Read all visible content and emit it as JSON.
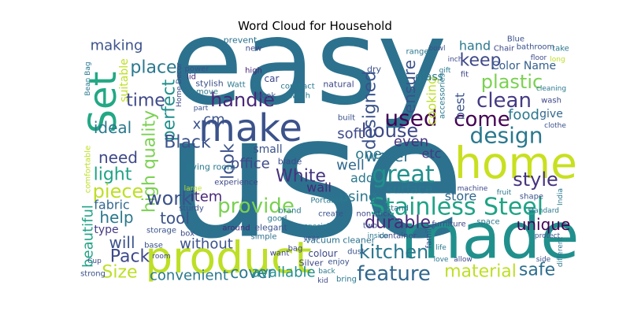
{
  "chart_data": {
    "type": "wordcloud",
    "title": "Word Cloud for Household",
    "words": [
      "easy",
      "use",
      "home",
      "made",
      "product",
      "make",
      "Set",
      "Stainless Steel",
      "design",
      "come",
      "clean",
      "plastic",
      "keep",
      "Color Name",
      "hand",
      "food",
      "give",
      "style",
      "unique",
      "safe",
      "material",
      "durable",
      "feature",
      "kitchen",
      "store",
      "surface",
      "great",
      "water",
      "house",
      "ensure",
      "designed",
      "used",
      "soft",
      "one",
      "even",
      "etc",
      "well",
      "add",
      "using",
      "wall",
      "White",
      "cooking",
      "glass",
      "best",
      "making",
      "place",
      "suitable",
      "time",
      "perfect",
      "ideal",
      "high quality",
      "Black",
      "cm",
      "x",
      "handle",
      "office",
      "look",
      "small",
      "need",
      "light",
      "piece",
      "fabric",
      "help",
      "type",
      "will",
      "beautiful",
      "Pack",
      "Size",
      "work",
      "tool",
      "item",
      "provide",
      "without",
      "cover",
      "convenient",
      "available",
      "colour",
      "prevent",
      "new",
      "stylish",
      "Watt",
      "lid",
      "remove",
      "power",
      "car",
      "high",
      "compact",
      "switch",
      "natural",
      "dry",
      "hook",
      "blade",
      "around",
      "brand",
      "good",
      "elegant",
      "simple",
      "box",
      "sturdy",
      "comfortable",
      "storage",
      "living room",
      "Bean Bag",
      "Home Decor",
      "part",
      "bottle",
      "accessories",
      "container",
      "built",
      "create",
      "special",
      "stand",
      "furniture",
      "space",
      "machine",
      "fruit",
      "shape",
      "standard",
      "India",
      "clothe",
      "wash",
      "cleaning",
      "bathroom",
      "take",
      "long",
      "floor",
      "gift",
      "inch",
      "bowl",
      "range",
      "Chair",
      "Blue",
      "fit",
      "large",
      "experience",
      "Portable",
      "non stick",
      "two",
      "inside",
      "vacuum cleaner",
      "bag",
      "year",
      "back",
      "enjoy",
      "family",
      "love",
      "Silver",
      "dust",
      "want",
      "bring",
      "kid",
      "strong",
      "Cup",
      "base",
      "room",
      "life",
      "allow",
      "different",
      "side",
      "protect"
    ],
    "weights": [
      150,
      215,
      55,
      80,
      55,
      48,
      48,
      30,
      28,
      26,
      26,
      24,
      22,
      14,
      16,
      18,
      14,
      24,
      20,
      22,
      22,
      22,
      26,
      24,
      16,
      16,
      30,
      20,
      24,
      20,
      22,
      28,
      18,
      18,
      18,
      16,
      18,
      16,
      18,
      16,
      22,
      16,
      14,
      16,
      18,
      22,
      14,
      22,
      22,
      20,
      22,
      22,
      18,
      18,
      24,
      18,
      22,
      14,
      20,
      22,
      24,
      16,
      20,
      14,
      20,
      18,
      22,
      22,
      24,
      20,
      18,
      26,
      18,
      20,
      18,
      18,
      12,
      11,
      10,
      11,
      10,
      10,
      10,
      10,
      12,
      10,
      10,
      10,
      11,
      11,
      10,
      11,
      10,
      10,
      10,
      11,
      10,
      10,
      10,
      10,
      10,
      11,
      9,
      9,
      9,
      9,
      10,
      10,
      10,
      10,
      9,
      10,
      10,
      10,
      9,
      9,
      10,
      9,
      9,
      9,
      10,
      9,
      10,
      10,
      9,
      9,
      9,
      9,
      9,
      10,
      10,
      10,
      10,
      9,
      10,
      10,
      10,
      10,
      9,
      11,
      10,
      9,
      9,
      10,
      10,
      9,
      11,
      10,
      10,
      10,
      9,
      10,
      9,
      10,
      9,
      9,
      9,
      9,
      9,
      9
    ],
    "colors": [
      "#2c728e",
      "#2c728e",
      "#c8e020",
      "#21908d",
      "#bddf26",
      "#3b528b",
      "#22a884",
      "#20a386",
      "#2a788e",
      "#440154",
      "#443a83",
      "#7ad151",
      "#3e4989",
      "#355f8d",
      "#2a788e",
      "#2a788e",
      "#31688e",
      "#46337e",
      "#440154",
      "#2e6e8e",
      "#bddf26",
      "#482878",
      "#31688e",
      "#2a788e",
      "#31688e",
      "#2a788e",
      "#21908d",
      "#2c728e",
      "#3e4989",
      "#3b528b",
      "#3b528b",
      "#440154",
      "#3e4989",
      "#2a788e",
      "#46337e",
      "#443a83",
      "#31688e",
      "#2a788e",
      "#2a788e",
      "#482878",
      "#46337e",
      "#bddf26",
      "#2a788e",
      "#3b528b",
      "#3b528b",
      "#2a788e",
      "#bddf26",
      "#3e4989",
      "#21908d",
      "#2a788e",
      "#7ad151",
      "#3b528b",
      "#3b528b",
      "#3b528b",
      "#482878",
      "#3e4989",
      "#3b528b",
      "#3b528b",
      "#3e4989",
      "#20a386",
      "#bddf26",
      "#31688e",
      "#2a788e",
      "#443a83",
      "#3b528b",
      "#20a386",
      "#3e4989",
      "#bddf26",
      "#3b528b",
      "#3b528b",
      "#482878",
      "#7ad151",
      "#3b528b",
      "#2a788e",
      "#2a788e",
      "#21908d",
      "#3e4989",
      "#2c728e",
      "#3e4989",
      "#3b528b",
      "#2a788e",
      "#482878",
      "#2a788e",
      "#3b528b",
      "#3e4989",
      "#482878",
      "#2a788e",
      "#2a788e",
      "#3e4989",
      "#3b528b",
      "#3b528b",
      "#3e4989",
      "#482878",
      "#2a788e",
      "#2a788e",
      "#3b528b",
      "#2c728e",
      "#3e4989",
      "#3b528b",
      "#bddf26",
      "#3b528b",
      "#2a788e",
      "#2a788e",
      "#3e4989",
      "#3b528b",
      "#2a788e",
      "#2a788e",
      "#3e4989",
      "#3b528b",
      "#3b528b",
      "#2a788e",
      "#2c728e",
      "#3e4989",
      "#2a788e",
      "#3e4989",
      "#2a788e",
      "#3b528b",
      "#2a788e",
      "#2a788e",
      "#3b528b",
      "#3e4989",
      "#2a788e",
      "#3b528b",
      "#2a788e",
      "#bddf26",
      "#3e4989",
      "#2a788e",
      "#3e4989",
      "#3b528b",
      "#2a788e",
      "#3e4989",
      "#3b528b",
      "#3e4989",
      "#bddf26",
      "#3e4989",
      "#2a788e",
      "#3e4989",
      "#3b528b",
      "#2a788e",
      "#2c728e",
      "#3e4989",
      "#3b528b",
      "#2a788e",
      "#3b528b",
      "#3e4989",
      "#2a788e",
      "#3e4989",
      "#3b528b",
      "#3e4989",
      "#2a788e",
      "#3e4989",
      "#3b528b",
      "#3e4989",
      "#3b528b",
      "#3e4989",
      "#2a788e",
      "#3e4989",
      "#2a788e",
      "#3b528b",
      "#3b528b"
    ]
  }
}
